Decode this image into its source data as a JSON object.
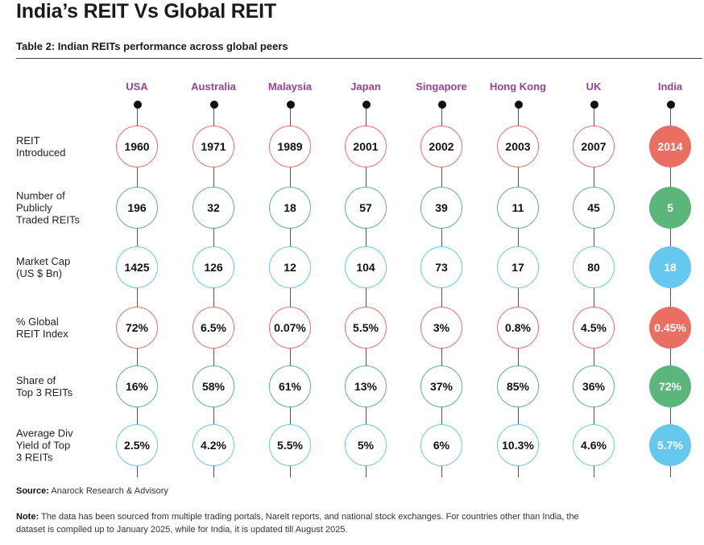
{
  "title": "India’s REIT Vs Global REIT",
  "subtitle": "Table 2: Indian REITs performance across global peers",
  "countries": [
    "USA",
    "Australia",
    "Malaysia",
    "Japan",
    "Singapore",
    "Hong Kong",
    "UK",
    "India"
  ],
  "rows": [
    {
      "label": "REIT Introduced",
      "label_lines": [
        "REIT",
        "Introduced"
      ],
      "color": "#ea6f62",
      "theme": "red",
      "values": [
        "1960",
        "1971",
        "1989",
        "2001",
        "2002",
        "2003",
        "2007",
        "2014"
      ]
    },
    {
      "label": "Number of Publicly Traded REITs",
      "label_lines": [
        "Number of",
        "Publicly",
        "Traded REITs"
      ],
      "color": "#5bb67c",
      "theme": "green",
      "values": [
        "196",
        "32",
        "18",
        "57",
        "39",
        "11",
        "45",
        "5"
      ]
    },
    {
      "label": "Market Cap (US $ Bn)",
      "label_lines": [
        "Market Cap",
        "(US $ Bn)"
      ],
      "color": "#66c8ef",
      "theme": "blue",
      "values": [
        "1425",
        "126",
        "12",
        "104",
        "73",
        "17",
        "80",
        "18"
      ]
    },
    {
      "label": "% Global REIT Index",
      "label_lines": [
        "% Global",
        "REIT Index"
      ],
      "color": "#ea6f62",
      "theme": "red",
      "values": [
        "72%",
        "6.5%",
        "0.07%",
        "5.5%",
        "3%",
        "0.8%",
        "4.5%",
        "0.45%"
      ]
    },
    {
      "label": "Share of Top 3 REITs",
      "label_lines": [
        "Share of",
        "Top 3 REITs"
      ],
      "color": "#5bb67c",
      "theme": "green",
      "values": [
        "16%",
        "58%",
        "61%",
        "13%",
        "37%",
        "85%",
        "36%",
        "72%"
      ]
    },
    {
      "label": "Average Div Yield of Top 3 REITs",
      "label_lines": [
        "Average Div",
        "Yield of Top",
        "3 REITs"
      ],
      "color": "#66c8ef",
      "theme": "blue",
      "values": [
        "2.5%",
        "4.2%",
        "5.5%",
        "5%",
        "6%",
        "10.3%",
        "4.6%",
        "5.7%"
      ]
    }
  ],
  "highlight_country": "India",
  "colors": {
    "header": "#9b3f9b",
    "red": "#ea6f62",
    "green": "#5bb67c",
    "blue": "#66c8ef"
  },
  "source": {
    "prefix": "Source:",
    "text": "Anarock Research & Advisory"
  },
  "note": {
    "prefix": "Note:",
    "text": "The data has been sourced from multiple trading portals, Nareit reports, and national stock exchanges. For countries other than India, the dataset is compiled up to January 2025, while for India, it is updated till August 2025."
  }
}
